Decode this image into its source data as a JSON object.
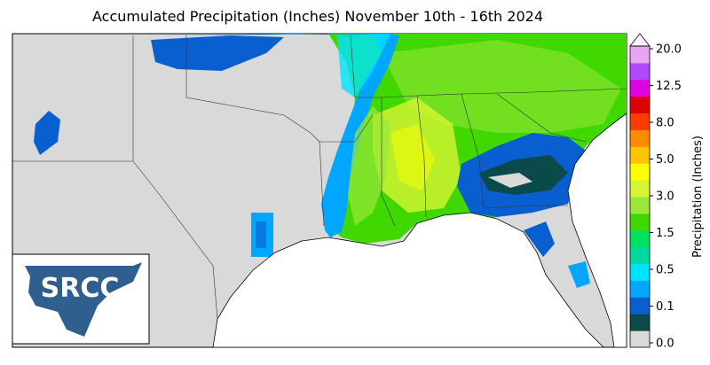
{
  "title": "Accumulated Precipitation (Inches) November 10th - 16th 2024",
  "legend": {
    "label": "Precipitation (Inches)",
    "ticks": [
      "0.0",
      "0.1",
      "0.5",
      "1.5",
      "3.0",
      "5.0",
      "8.0",
      "12.5",
      "20.0"
    ],
    "colors": [
      "#d9d9d9",
      "#0b4a4a",
      "#0a5fd0",
      "#00a6ff",
      "#00e3ff",
      "#00d8a0",
      "#00e060",
      "#40d800",
      "#9ae83a",
      "#d6f532",
      "#ffff00",
      "#ffc400",
      "#ff8c00",
      "#ff3c00",
      "#e00000",
      "#e000e0",
      "#b048ff",
      "#e8a6f0"
    ],
    "over_color": "#fdf2ff"
  },
  "logo": "SRCC"
}
